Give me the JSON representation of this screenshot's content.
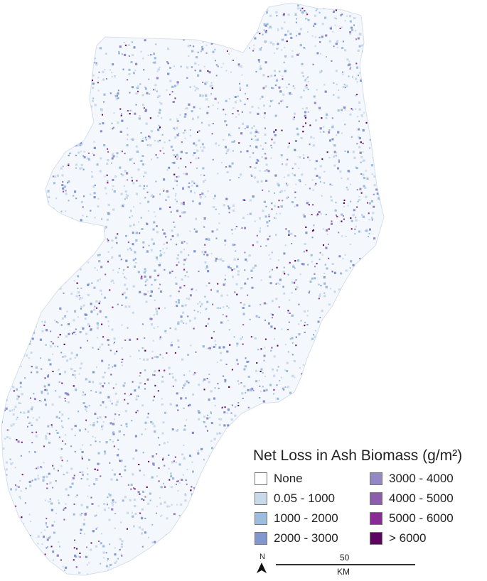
{
  "map": {
    "legend": {
      "title": "Net Loss in Ash Biomass (g/m²)",
      "classes": [
        {
          "label": "None",
          "color": "#ffffff"
        },
        {
          "label": "0.05 - 1000",
          "color": "#c9d9ec"
        },
        {
          "label": "1000 - 2000",
          "color": "#9dbddf"
        },
        {
          "label": "2000 - 3000",
          "color": "#8197ce"
        },
        {
          "label": "3000 - 4000",
          "color": "#9586c4"
        },
        {
          "label": "4000 - 5000",
          "color": "#8c5cad"
        },
        {
          "label": "5000 - 6000",
          "color": "#8b2a96"
        },
        {
          "label": "> 6000",
          "color": "#5c0560"
        }
      ]
    },
    "north": {
      "label": "N",
      "icon": "north-arrow-icon"
    },
    "scale": {
      "value": "50",
      "unit": "KM"
    }
  }
}
